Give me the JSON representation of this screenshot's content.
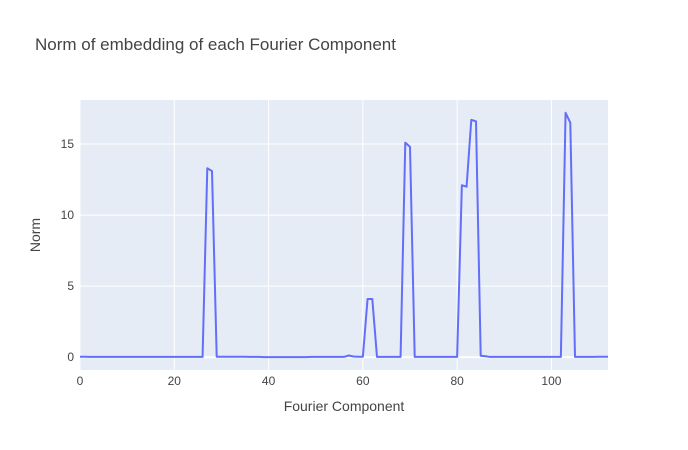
{
  "chart_data": {
    "type": "line",
    "title": "Norm of embedding of each Fourier Component",
    "xlabel": "Fourier Component",
    "ylabel": "Norm",
    "xlim": [
      0,
      112
    ],
    "ylim": [
      -0.9,
      18.1
    ],
    "xticks": [
      0,
      20,
      40,
      60,
      80,
      100
    ],
    "yticks": [
      0,
      5,
      10,
      15
    ],
    "grid": true,
    "colors": {
      "line": "#636efa",
      "plot_bg": "#e5ecf6",
      "grid": "#ffffff",
      "text": "#444444"
    },
    "series": [
      {
        "x": [
          0,
          1,
          2,
          3,
          4,
          5,
          6,
          7,
          8,
          9,
          10,
          11,
          12,
          13,
          14,
          15,
          16,
          17,
          18,
          19,
          20,
          21,
          22,
          23,
          24,
          25,
          26,
          27,
          28,
          29,
          30,
          31,
          32,
          33,
          34,
          35,
          36,
          37,
          38,
          39,
          40,
          41,
          42,
          43,
          44,
          45,
          46,
          47,
          48,
          49,
          50,
          51,
          52,
          53,
          54,
          55,
          56,
          57,
          58,
          59,
          60,
          61,
          62,
          63,
          64,
          65,
          66,
          67,
          68,
          69,
          70,
          71,
          72,
          73,
          74,
          75,
          76,
          77,
          78,
          79,
          80,
          81,
          82,
          83,
          84,
          85,
          86,
          87,
          88,
          89,
          90,
          91,
          92,
          93,
          94,
          95,
          96,
          97,
          98,
          99,
          100,
          101,
          102,
          103,
          104,
          105,
          106,
          107,
          108,
          109,
          110,
          111,
          112
        ],
        "y": [
          0.03,
          0.03,
          0.02,
          0.02,
          0.02,
          0.02,
          0.02,
          0.02,
          0.02,
          0.02,
          0.02,
          0.02,
          0.02,
          0.02,
          0.02,
          0.02,
          0.02,
          0.02,
          0.02,
          0.02,
          0.02,
          0.02,
          0.02,
          0.02,
          0.02,
          0.02,
          0.02,
          13.3,
          13.1,
          0.03,
          0.03,
          0.03,
          0.03,
          0.03,
          0.03,
          0.03,
          0.02,
          0.02,
          0.02,
          0.01,
          0.01,
          0.01,
          0.01,
          0.01,
          0.01,
          0.01,
          0.01,
          0.01,
          0.01,
          0.02,
          0.02,
          0.02,
          0.02,
          0.02,
          0.02,
          0.02,
          0.02,
          0.12,
          0.05,
          0.03,
          0.03,
          4.1,
          4.1,
          0.02,
          0.02,
          0.02,
          0.02,
          0.02,
          0.02,
          15.1,
          14.8,
          0.02,
          0.02,
          0.02,
          0.02,
          0.02,
          0.02,
          0.02,
          0.02,
          0.02,
          0.02,
          12.1,
          12.0,
          16.7,
          16.6,
          0.1,
          0.07,
          0.02,
          0.02,
          0.02,
          0.02,
          0.02,
          0.02,
          0.02,
          0.02,
          0.02,
          0.02,
          0.02,
          0.02,
          0.02,
          0.02,
          0.02,
          0.02,
          17.2,
          16.5,
          0.02,
          0.02,
          0.02,
          0.02,
          0.02,
          0.03,
          0.03,
          0.03
        ]
      }
    ]
  }
}
